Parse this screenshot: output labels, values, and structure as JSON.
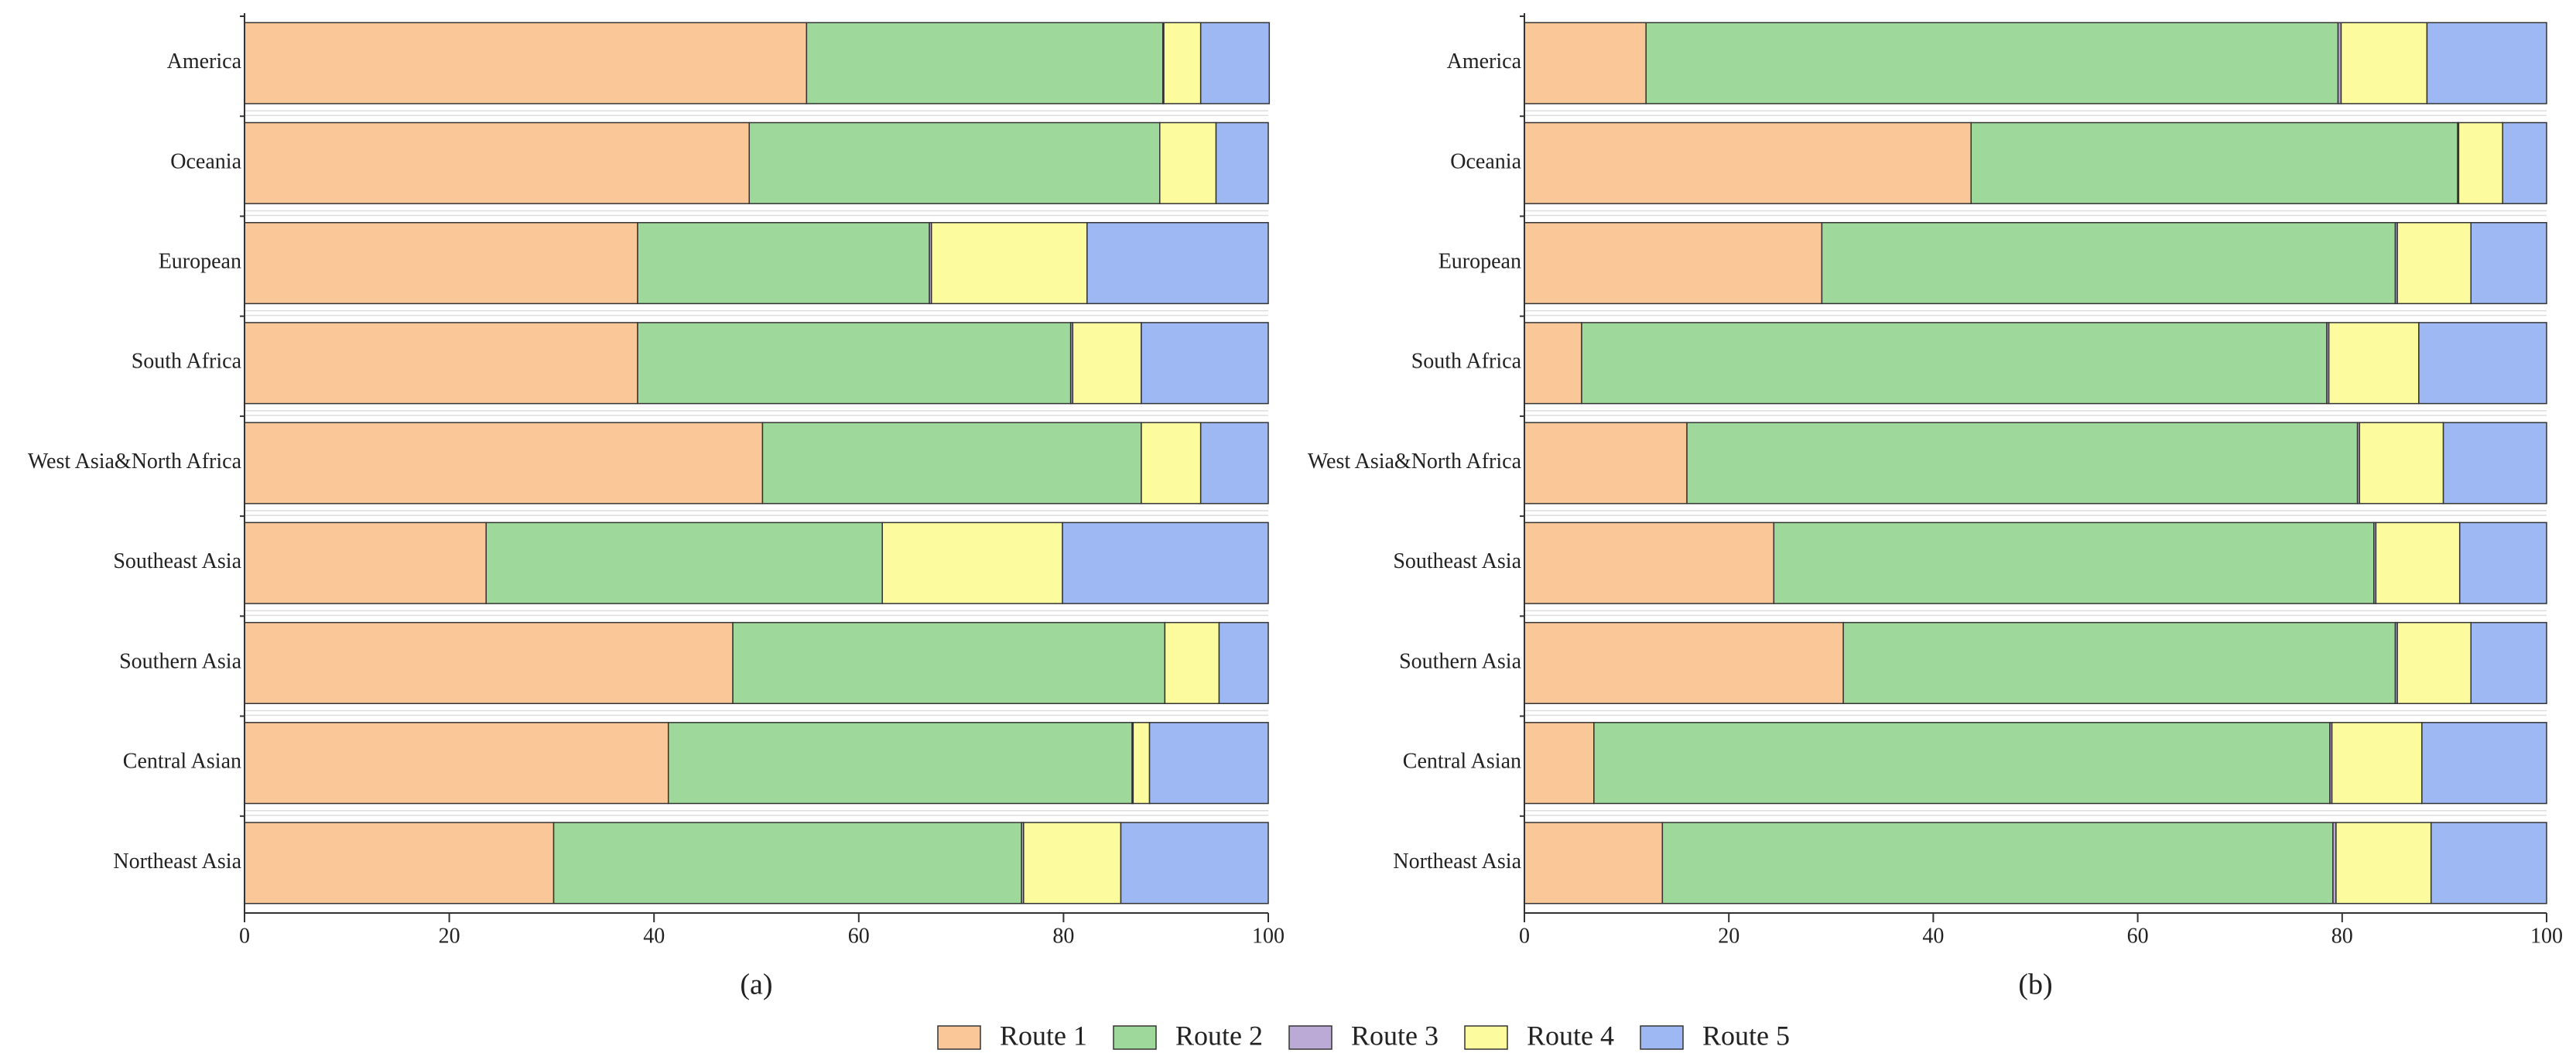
{
  "chart_data": [
    {
      "type": "stacked-bar",
      "orientation": "horizontal",
      "title": "(a)",
      "categories": [
        "America",
        "Oceania",
        "European",
        "South Africa",
        "West Asia&North Africa",
        "Southeast Asia",
        "Southern Asia",
        "Central Asian",
        "Northeast Asia"
      ],
      "series": [
        {
          "name": "Route 1",
          "color": "#fac898",
          "values": [
            54.9,
            49.3,
            38.4,
            38.4,
            50.6,
            23.6,
            47.7,
            41.4,
            30.2
          ]
        },
        {
          "name": "Route 2",
          "color": "#9ed89b",
          "values": [
            34.8,
            40.1,
            28.5,
            42.3,
            37.0,
            38.7,
            42.2,
            45.3,
            45.7
          ]
        },
        {
          "name": "Route 3",
          "color": "#bcaad6",
          "values": [
            0.1,
            0,
            0.2,
            0.2,
            0,
            0,
            0,
            0.1,
            0.2
          ]
        },
        {
          "name": "Route 4",
          "color": "#fcfc9f",
          "values": [
            3.6,
            5.5,
            15.2,
            6.7,
            5.8,
            17.6,
            5.3,
            1.6,
            9.5
          ]
        },
        {
          "name": "Route 5",
          "color": "#9db8f2",
          "values": [
            6.7,
            5.1,
            17.7,
            12.4,
            6.6,
            20.1,
            4.8,
            11.6,
            14.4
          ]
        }
      ],
      "xlim": [
        0,
        100
      ],
      "xticks": [
        0,
        20,
        40,
        60,
        80,
        100
      ]
    },
    {
      "type": "stacked-bar",
      "orientation": "horizontal",
      "title": "(b)",
      "categories": [
        "America",
        "Oceania",
        "European",
        "South Africa",
        "West Asia&North Africa",
        "Southeast Asia",
        "Southern Asia",
        "Central Asian",
        "Northeast Asia"
      ],
      "series": [
        {
          "color": "#fac898",
          "values": [
            11.9,
            43.7,
            29.1,
            5.6,
            15.9,
            24.4,
            31.2,
            6.8,
            13.5
          ]
        },
        {
          "color": "#9ed89b",
          "values": [
            67.7,
            47.6,
            56.1,
            72.9,
            65.6,
            58.7,
            54.0,
            72.0,
            65.6
          ]
        },
        {
          "color": "#bcaad6",
          "values": [
            0.3,
            0.1,
            0.2,
            0.2,
            0.2,
            0.2,
            0.2,
            0.2,
            0.3
          ]
        },
        {
          "color": "#fcfc9f",
          "values": [
            8.4,
            4.3,
            7.2,
            8.8,
            8.2,
            8.2,
            7.2,
            8.8,
            9.3
          ]
        },
        {
          "color": "#9db8f2",
          "values": [
            11.7,
            4.3,
            7.4,
            12.5,
            10.1,
            8.5,
            7.4,
            12.2,
            11.3
          ]
        }
      ],
      "xlim": [
        0,
        100
      ],
      "xticks": [
        0,
        20,
        40,
        60,
        80,
        100
      ]
    }
  ]
}
